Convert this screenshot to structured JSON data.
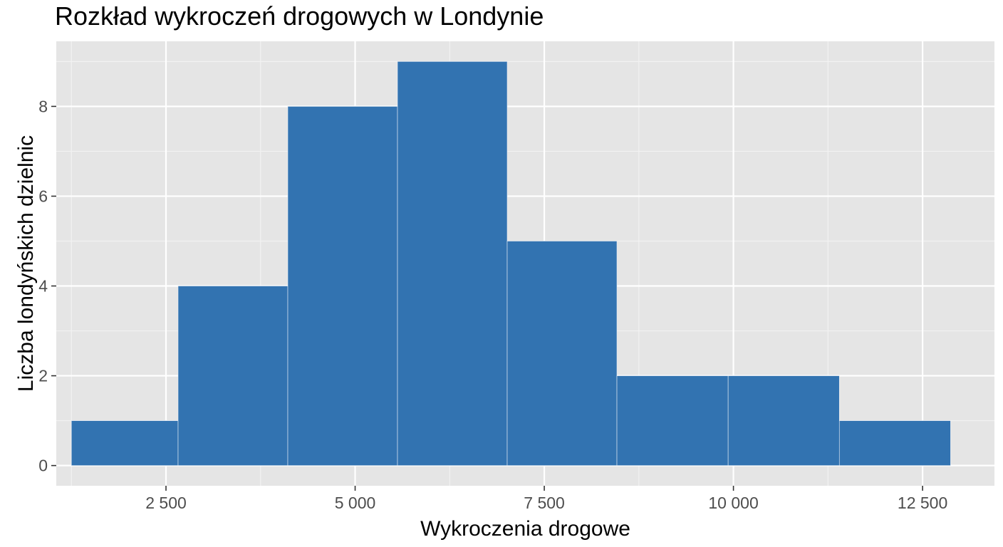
{
  "chart_data": {
    "type": "histogram",
    "title": "Rozkład wykroczeń drogowych w Londynie",
    "xlabel": "Wykroczenia drogowe",
    "ylabel": "Liczba londyńskich dzielnic",
    "xlim": [
      1050,
      13450
    ],
    "ylim": [
      -0.45,
      9.45
    ],
    "x_ticks": [
      {
        "value": 2500,
        "label": "2 500"
      },
      {
        "value": 5000,
        "label": "5 000"
      },
      {
        "value": 7500,
        "label": "7 500"
      },
      {
        "value": 10000,
        "label": "10 000"
      },
      {
        "value": 12500,
        "label": "12 500"
      }
    ],
    "y_ticks": [
      {
        "value": 0,
        "label": "0"
      },
      {
        "value": 2,
        "label": "2"
      },
      {
        "value": 4,
        "label": "4"
      },
      {
        "value": 6,
        "label": "6"
      },
      {
        "value": 8,
        "label": "8"
      }
    ],
    "bins": [
      {
        "x0": 1250,
        "x1": 2660,
        "count": 1
      },
      {
        "x0": 2660,
        "x1": 4110,
        "count": 4
      },
      {
        "x0": 4110,
        "x1": 5560,
        "count": 8
      },
      {
        "x0": 5560,
        "x1": 7010,
        "count": 9
      },
      {
        "x0": 7010,
        "x1": 8460,
        "count": 5
      },
      {
        "x0": 8460,
        "x1": 9930,
        "count": 2
      },
      {
        "x0": 9930,
        "x1": 11400,
        "count": 2
      },
      {
        "x0": 11400,
        "x1": 12870,
        "count": 1
      }
    ],
    "bar_color": "#3273b1",
    "panel_background": "#e5e5e5",
    "grid": true,
    "legend": "none"
  }
}
